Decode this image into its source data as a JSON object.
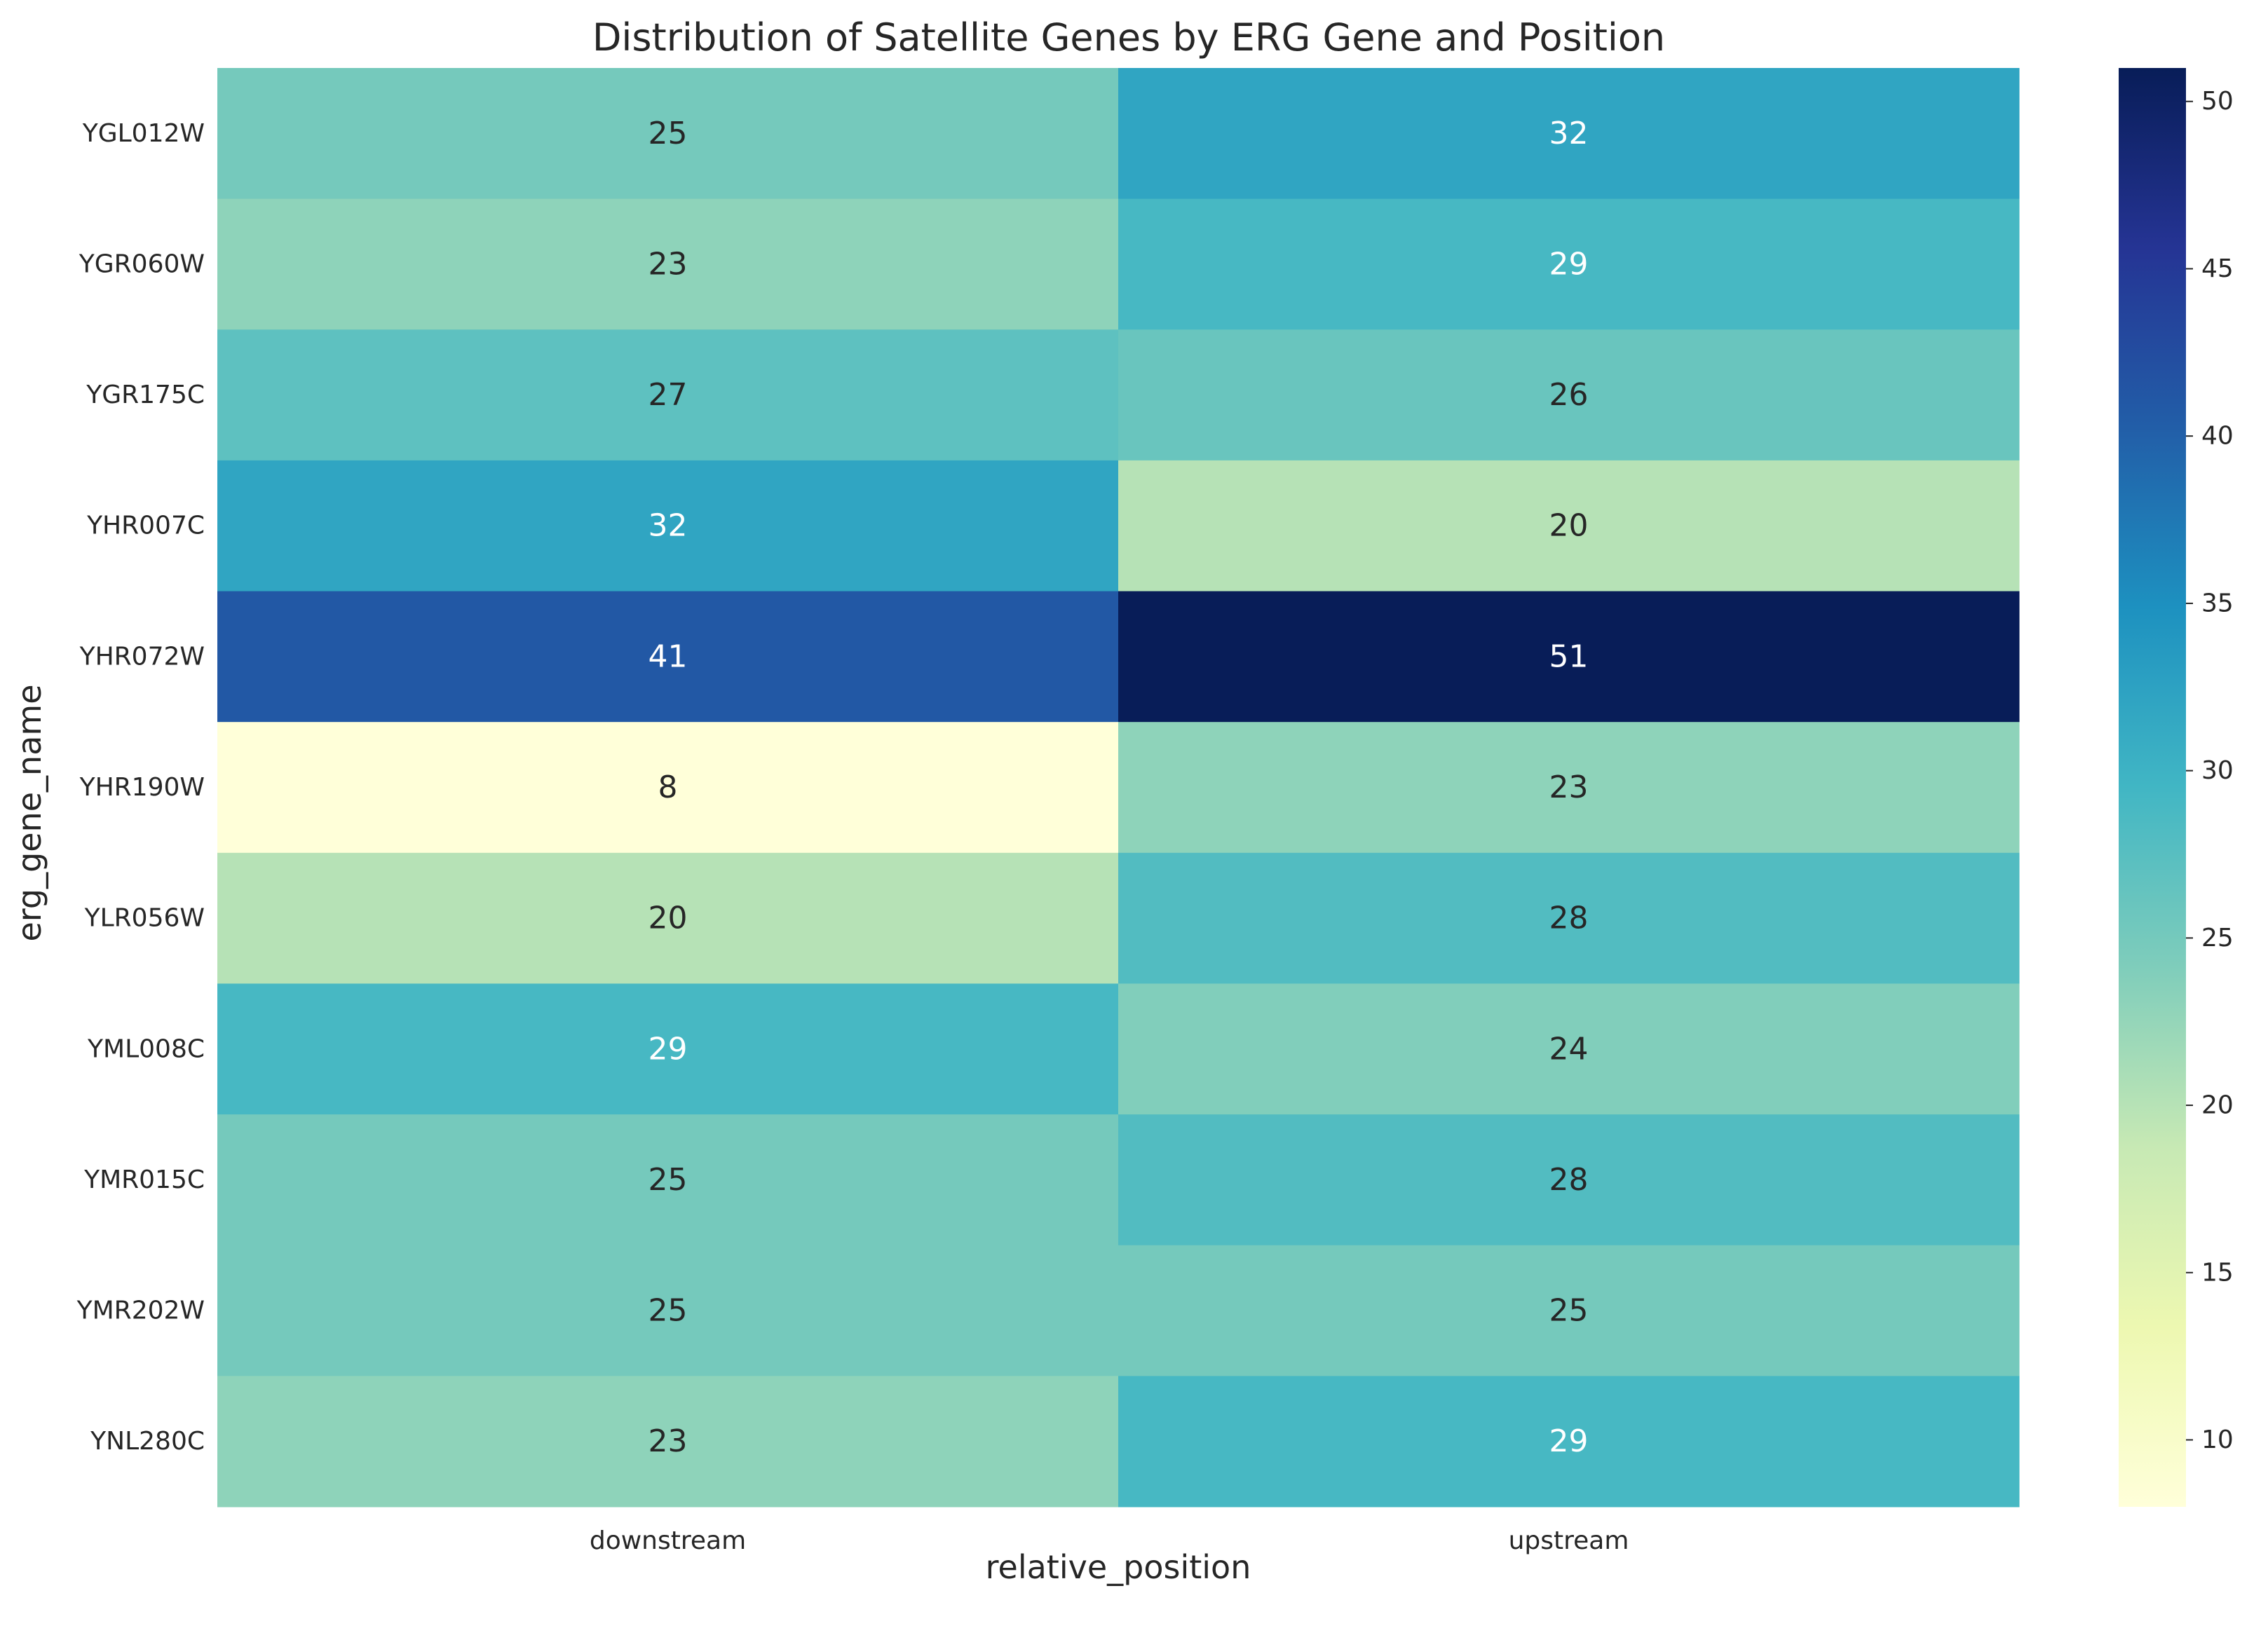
{
  "chart_data": {
    "type": "heatmap",
    "title": "Distribution of Satellite Genes by ERG Gene and Position",
    "xlabel": "relative_position",
    "ylabel": "erg_gene_name",
    "x_categories": [
      "downstream",
      "upstream"
    ],
    "y_categories": [
      "YGL012W",
      "YGR060W",
      "YGR175C",
      "YHR007C",
      "YHR072W",
      "YHR190W",
      "YLR056W",
      "YML008C",
      "YMR015C",
      "YMR202W",
      "YNL280C"
    ],
    "values": [
      [
        25,
        32
      ],
      [
        23,
        29
      ],
      [
        27,
        26
      ],
      [
        32,
        20
      ],
      [
        41,
        51
      ],
      [
        8,
        23
      ],
      [
        20,
        28
      ],
      [
        29,
        24
      ],
      [
        25,
        28
      ],
      [
        25,
        25
      ],
      [
        23,
        29
      ]
    ],
    "colormap": "YlGnBu",
    "colorbar": {
      "min": 8,
      "max": 51,
      "ticks": [
        10,
        15,
        20,
        25,
        30,
        35,
        40,
        45,
        50
      ]
    },
    "annotated": true,
    "grid": false
  }
}
